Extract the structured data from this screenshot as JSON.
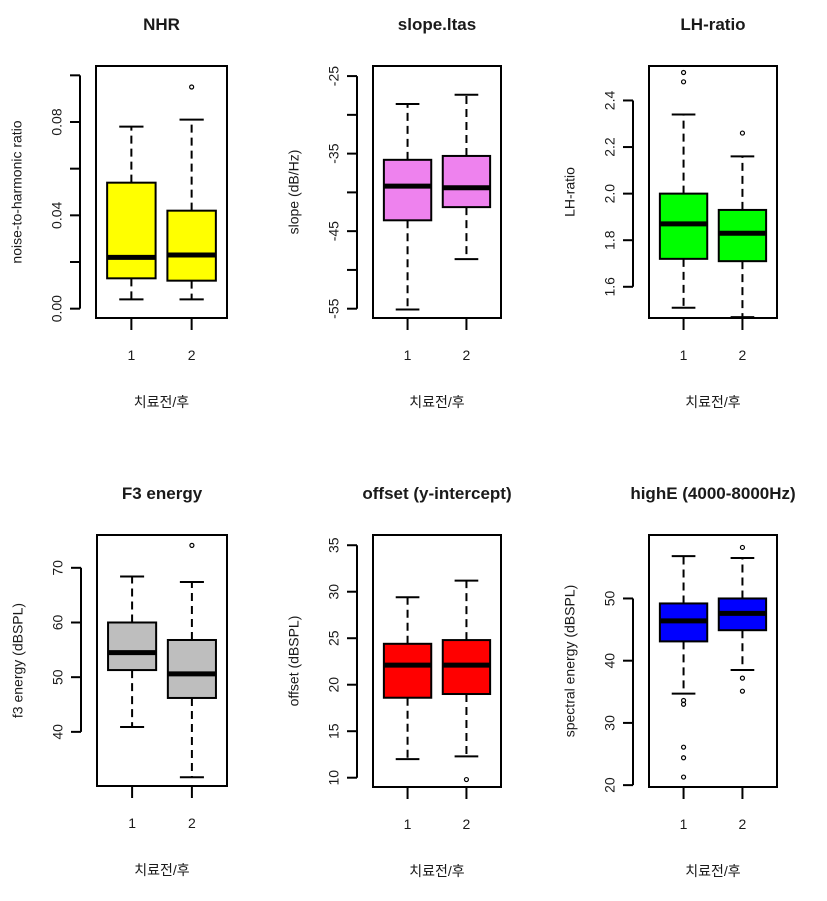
{
  "figure": {
    "type": "boxplot-grid",
    "rows": 2,
    "cols": 3
  },
  "chart_data": [
    {
      "type": "boxplot",
      "title": "NHR",
      "xlabel": "치료전/후",
      "ylabel": "noise-to-harmonic ratio",
      "categories": [
        "1",
        "2"
      ],
      "fill_color": "#ffff00",
      "ylim": [
        -0.004,
        0.104
      ],
      "yticks": [
        0.0,
        0.02,
        0.04,
        0.06,
        0.08,
        0.1
      ],
      "ytick_labels": [
        "0.00",
        "",
        "0.04",
        "",
        "0.08",
        ""
      ],
      "boxes": [
        {
          "category": "1",
          "whisker_low": 0.004,
          "q1": 0.013,
          "median": 0.022,
          "q3": 0.054,
          "whisker_high": 0.078,
          "outliers": []
        },
        {
          "category": "2",
          "whisker_low": 0.004,
          "q1": 0.012,
          "median": 0.023,
          "q3": 0.042,
          "whisker_high": 0.081,
          "outliers": [
            0.095
          ]
        }
      ]
    },
    {
      "type": "boxplot",
      "title": "slope.ltas",
      "xlabel": "치료전/후",
      "ylabel": "slope (dB/Hz)",
      "categories": [
        "1",
        "2"
      ],
      "fill_color": "#ee82ee",
      "ylim": [
        -56.2,
        -23.7
      ],
      "yticks": [
        -25,
        -30,
        -35,
        -40,
        -45,
        -50,
        -55
      ],
      "ytick_labels": [
        "-25",
        "",
        "-35",
        "",
        "-45",
        "",
        "-55"
      ],
      "boxes": [
        {
          "category": "1",
          "whisker_low": -55.1,
          "q1": -43.6,
          "median": -39.2,
          "q3": -35.8,
          "whisker_high": -28.6,
          "outliers": []
        },
        {
          "category": "2",
          "whisker_low": -48.6,
          "q1": -41.9,
          "median": -39.4,
          "q3": -35.3,
          "whisker_high": -27.4,
          "outliers": []
        }
      ]
    },
    {
      "type": "boxplot",
      "title": "LH-ratio",
      "xlabel": "치료전/후",
      "ylabel": "LH-ratio",
      "categories": [
        "1",
        "2"
      ],
      "fill_color": "#00ff00",
      "ylim": [
        1.466,
        2.548
      ],
      "yticks": [
        1.6,
        1.8,
        2.0,
        2.2,
        2.4
      ],
      "ytick_labels": [
        "1.6",
        "1.8",
        "2.0",
        "2.2",
        "2.4"
      ],
      "boxes": [
        {
          "category": "1",
          "whisker_low": 1.51,
          "q1": 1.72,
          "median": 1.87,
          "q3": 2.0,
          "whisker_high": 2.34,
          "outliers": [
            2.48,
            2.52
          ]
        },
        {
          "category": "2",
          "whisker_low": 1.47,
          "q1": 1.71,
          "median": 1.83,
          "q3": 1.93,
          "whisker_high": 2.16,
          "outliers": [
            2.26
          ]
        }
      ]
    },
    {
      "type": "boxplot",
      "title": "F3 energy",
      "xlabel": "치료전/후",
      "ylabel": "f3 energy (dBSPL)",
      "categories": [
        "1",
        "2"
      ],
      "fill_color": "#bebebe",
      "ylim": [
        30.1,
        76.0
      ],
      "yticks": [
        40,
        50,
        60,
        70
      ],
      "ytick_labels": [
        "40",
        "50",
        "60",
        "70"
      ],
      "boxes": [
        {
          "category": "1",
          "whisker_low": 40.9,
          "q1": 51.3,
          "median": 54.5,
          "q3": 60.0,
          "whisker_high": 68.4,
          "outliers": []
        },
        {
          "category": "2",
          "whisker_low": 31.7,
          "q1": 46.2,
          "median": 50.6,
          "q3": 56.8,
          "whisker_high": 67.4,
          "outliers": [
            74.1
          ]
        }
      ]
    },
    {
      "type": "boxplot",
      "title": "offset (y-intercept)",
      "xlabel": "치료전/후",
      "ylabel": "offset (dBSPL)",
      "categories": [
        "1",
        "2"
      ],
      "fill_color": "#ff0000",
      "ylim": [
        9.0,
        36.1
      ],
      "yticks": [
        10,
        15,
        20,
        25,
        30,
        35
      ],
      "ytick_labels": [
        "10",
        "15",
        "20",
        "25",
        "30",
        "35"
      ],
      "boxes": [
        {
          "category": "1",
          "whisker_low": 12.0,
          "q1": 18.6,
          "median": 22.1,
          "q3": 24.4,
          "whisker_high": 29.4,
          "outliers": []
        },
        {
          "category": "2",
          "whisker_low": 12.3,
          "q1": 19.0,
          "median": 22.1,
          "q3": 24.8,
          "whisker_high": 31.2,
          "outliers": [
            9.8
          ]
        }
      ]
    },
    {
      "type": "boxplot",
      "title": "highE (4000-8000Hz)",
      "xlabel": "치료전/후",
      "ylabel": "spectral energy (dBSPL)",
      "categories": [
        "1",
        "2"
      ],
      "fill_color": "#0000ff",
      "ylim": [
        19.7,
        60.2
      ],
      "yticks": [
        20,
        30,
        40,
        50
      ],
      "ytick_labels": [
        "20",
        "30",
        "40",
        "50"
      ],
      "boxes": [
        {
          "category": "1",
          "whisker_low": 34.7,
          "q1": 43.1,
          "median": 46.4,
          "q3": 49.2,
          "whisker_high": 56.8,
          "outliers": [
            33.6,
            33.0,
            26.1,
            24.4,
            21.3
          ]
        },
        {
          "category": "2",
          "whisker_low": 38.5,
          "q1": 44.9,
          "median": 47.6,
          "q3": 50.0,
          "whisker_high": 56.5,
          "outliers": [
            58.2,
            37.2,
            35.1
          ]
        }
      ]
    }
  ]
}
